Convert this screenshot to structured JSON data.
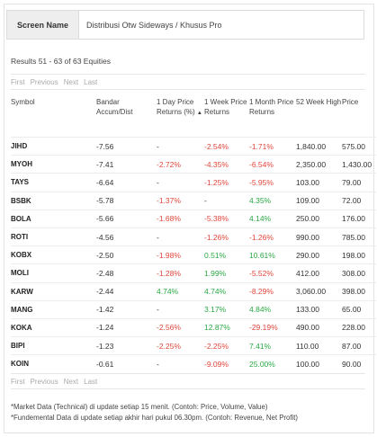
{
  "screen": {
    "label": "Screen Name",
    "value": "Distribusi Otw Sideways / Khusus Pro"
  },
  "results_text": "Results 51 - 63 of 63 Equities",
  "pager": {
    "first": "First",
    "previous": "Previous",
    "next": "Next",
    "last": "Last"
  },
  "columns": [
    {
      "label": "Symbol"
    },
    {
      "label": "Bandar Accum/Dist"
    },
    {
      "label": "1 Day Price Returns (%)",
      "sort": "▲"
    },
    {
      "label": "1 Week Price Returns"
    },
    {
      "label": "1 Month Price Returns"
    },
    {
      "label": "52 Week High"
    },
    {
      "label": "Price"
    }
  ],
  "rows": [
    {
      "symbol": "JIHD",
      "bandar": "-7.56",
      "day": "-",
      "week": "-2.54%",
      "month": "-1.71%",
      "high": "1,840.00",
      "price": "575.00"
    },
    {
      "symbol": "MYOH",
      "bandar": "-7.41",
      "day": "-2.72%",
      "week": "-4.35%",
      "month": "-6.54%",
      "high": "2,350.00",
      "price": "1,430.00"
    },
    {
      "symbol": "TAYS",
      "bandar": "-6.64",
      "day": "-",
      "week": "-1.25%",
      "month": "-5.95%",
      "high": "103.00",
      "price": "79.00"
    },
    {
      "symbol": "BSBK",
      "bandar": "-5.78",
      "day": "-1.37%",
      "week": "-",
      "month": "4.35%",
      "high": "109.00",
      "price": "72.00"
    },
    {
      "symbol": "BOLA",
      "bandar": "-5.66",
      "day": "-1.68%",
      "week": "-5.38%",
      "month": "4.14%",
      "high": "250.00",
      "price": "176.00"
    },
    {
      "symbol": "ROTI",
      "bandar": "-4.56",
      "day": "-",
      "week": "-1.26%",
      "month": "-1.26%",
      "high": "990.00",
      "price": "785.00"
    },
    {
      "symbol": "KOBX",
      "bandar": "-2.50",
      "day": "-1.98%",
      "week": "0.51%",
      "month": "10.61%",
      "high": "290.00",
      "price": "198.00"
    },
    {
      "symbol": "MOLI",
      "bandar": "-2.48",
      "day": "-1.28%",
      "week": "1.99%",
      "month": "-5.52%",
      "high": "412.00",
      "price": "308.00"
    },
    {
      "symbol": "KARW",
      "bandar": "-2.44",
      "day": "4.74%",
      "week": "4.74%",
      "month": "-8.29%",
      "high": "3,060.00",
      "price": "398.00"
    },
    {
      "symbol": "MANG",
      "bandar": "-1.42",
      "day": "-",
      "week": "3.17%",
      "month": "4.84%",
      "high": "133.00",
      "price": "65.00"
    },
    {
      "symbol": "KOKA",
      "bandar": "-1.24",
      "day": "-2.56%",
      "week": "12.87%",
      "month": "-29.19%",
      "high": "490.00",
      "price": "228.00"
    },
    {
      "symbol": "BIPI",
      "bandar": "-1.23",
      "day": "-2.25%",
      "week": "-2.25%",
      "month": "7.41%",
      "high": "110.00",
      "price": "87.00"
    },
    {
      "symbol": "KOIN",
      "bandar": "-0.61",
      "day": "-",
      "week": "-9.09%",
      "month": "25.00%",
      "high": "100.00",
      "price": "90.00"
    }
  ],
  "notes": [
    "*Market Data (Technical) di update setiap 15 menit. (Contoh: Price, Volume, Value)",
    "*Fundemental Data di update setiap akhir hari pukul 06.30pm. (Contoh: Revenue, Net Profit)"
  ],
  "colors": {
    "negative": "#e0463c",
    "positive": "#2aa844"
  }
}
